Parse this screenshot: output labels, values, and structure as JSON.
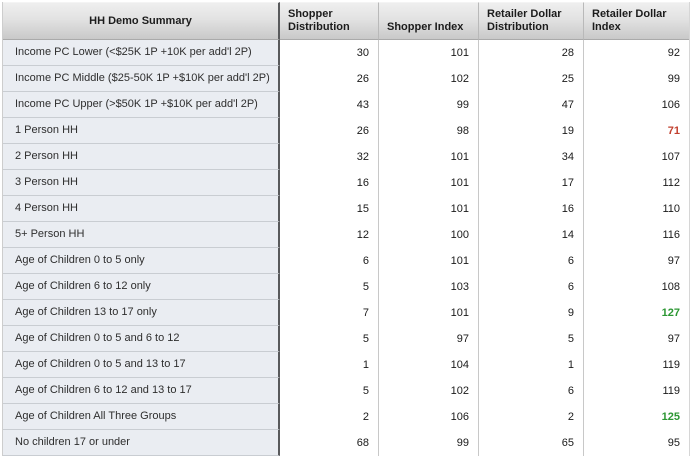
{
  "table": {
    "title": "HH Demo Summary",
    "columns": [
      {
        "label": "HH Demo Summary"
      },
      {
        "label": "Shopper Distribution"
      },
      {
        "label": "Shopper Index"
      },
      {
        "label": "Retailer Dollar Distribution"
      },
      {
        "label": "Retailer Dollar Index"
      }
    ],
    "rows": [
      {
        "label": "Income PC Lower (<$25K 1P +10K per add'l 2P)",
        "values": [
          "30",
          "101",
          "28",
          "92"
        ],
        "value_styles": [
          null,
          null,
          null,
          null
        ]
      },
      {
        "label": "Income PC Middle ($25-50K 1P +$10K per add'l 2P)",
        "values": [
          "26",
          "102",
          "25",
          "99"
        ],
        "value_styles": [
          null,
          null,
          null,
          null
        ]
      },
      {
        "label": "Income PC Upper (>$50K 1P +$10K per add'l 2P)",
        "values": [
          "43",
          "99",
          "47",
          "106"
        ],
        "value_styles": [
          null,
          null,
          null,
          null
        ]
      },
      {
        "label": "1 Person HH",
        "values": [
          "26",
          "98",
          "19",
          "71"
        ],
        "value_styles": [
          null,
          null,
          null,
          "red"
        ]
      },
      {
        "label": "2 Person HH",
        "values": [
          "32",
          "101",
          "34",
          "107"
        ],
        "value_styles": [
          null,
          null,
          null,
          null
        ]
      },
      {
        "label": "3 Person HH",
        "values": [
          "16",
          "101",
          "17",
          "112"
        ],
        "value_styles": [
          null,
          null,
          null,
          null
        ]
      },
      {
        "label": "4 Person HH",
        "values": [
          "15",
          "101",
          "16",
          "110"
        ],
        "value_styles": [
          null,
          null,
          null,
          null
        ]
      },
      {
        "label": "5+ Person HH",
        "values": [
          "12",
          "100",
          "14",
          "116"
        ],
        "value_styles": [
          null,
          null,
          null,
          null
        ]
      },
      {
        "label": "Age of Children 0 to 5 only",
        "values": [
          "6",
          "101",
          "6",
          "97"
        ],
        "value_styles": [
          null,
          null,
          null,
          null
        ]
      },
      {
        "label": "Age of Children 6 to 12 only",
        "values": [
          "5",
          "103",
          "6",
          "108"
        ],
        "value_styles": [
          null,
          null,
          null,
          null
        ]
      },
      {
        "label": "Age of Children 13 to 17 only",
        "values": [
          "7",
          "101",
          "9",
          "127"
        ],
        "value_styles": [
          null,
          null,
          null,
          "green"
        ]
      },
      {
        "label": "Age of Children 0 to 5 and 6 to 12",
        "values": [
          "5",
          "97",
          "5",
          "97"
        ],
        "value_styles": [
          null,
          null,
          null,
          null
        ]
      },
      {
        "label": "Age of Children 0 to 5 and 13 to 17",
        "values": [
          "1",
          "104",
          "1",
          "119"
        ],
        "value_styles": [
          null,
          null,
          null,
          null
        ]
      },
      {
        "label": "Age of Children 6 to 12 and 13 to 17",
        "values": [
          "5",
          "102",
          "6",
          "119"
        ],
        "value_styles": [
          null,
          null,
          null,
          null
        ]
      },
      {
        "label": "Age of Children All Three Groups",
        "values": [
          "2",
          "106",
          "2",
          "125"
        ],
        "value_styles": [
          null,
          null,
          null,
          "green"
        ]
      },
      {
        "label": "No children 17 or under",
        "values": [
          "68",
          "99",
          "65",
          "95"
        ],
        "value_styles": [
          null,
          null,
          null,
          null
        ]
      }
    ],
    "colors": {
      "negative_index": "#c2402f",
      "positive_index": "#2c9733",
      "label_column_bg": "#eaedf2",
      "dark_divider": "#595a5c"
    }
  }
}
